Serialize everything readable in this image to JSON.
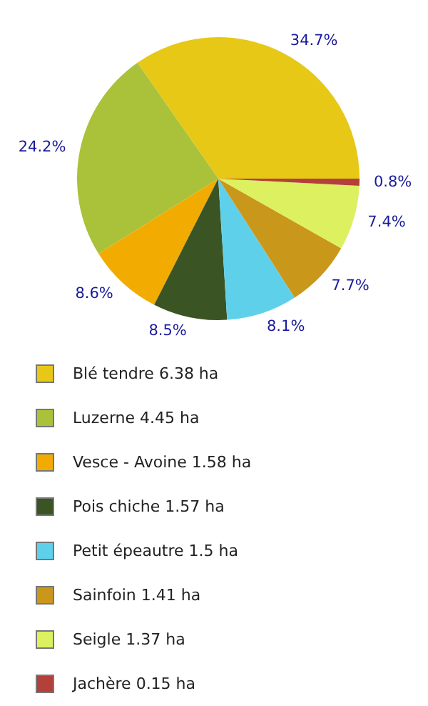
{
  "chart_data": {
    "type": "pie",
    "categories": [
      "Blé tendre 6.38 ha",
      "Luzerne 4.45 ha",
      "Vesce - Avoine 1.58 ha",
      "Pois chiche 1.57 ha",
      "Petit épeautre 1.5 ha",
      "Sainfoin 1.41 ha",
      "Seigle 1.37 ha",
      "Jachère 0.15 ha"
    ],
    "values": [
      34.7,
      24.2,
      8.6,
      8.5,
      8.1,
      7.7,
      7.4,
      0.8
    ],
    "value_labels": [
      "34.7%",
      "24.2%",
      "8.6%",
      "8.5%",
      "8.1%",
      "7.7%",
      "7.4%",
      "0.8%"
    ],
    "colors": [
      "#e8c817",
      "#a9c23a",
      "#f2ab00",
      "#3b5423",
      "#5fd0ea",
      "#c99719",
      "#dcf060",
      "#b3403a"
    ],
    "legend": "bottom"
  }
}
